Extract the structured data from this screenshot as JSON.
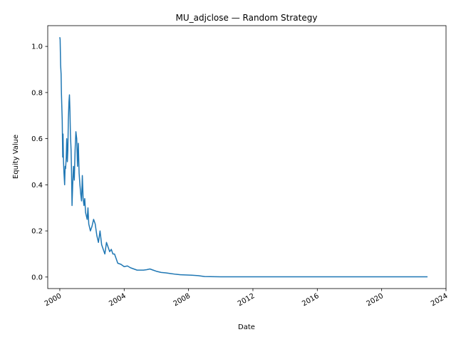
{
  "chart_data": {
    "type": "line",
    "title": "MU_adjclose — Random Strategy",
    "xlabel": "Date",
    "ylabel": "Equity Value",
    "x_ticks": [
      "2000",
      "2004",
      "2008",
      "2012",
      "2016",
      "2020",
      "2024"
    ],
    "y_ticks": [
      "0.0",
      "0.2",
      "0.4",
      "0.6",
      "0.8",
      "1.0"
    ],
    "xlim": [
      1999.25,
      2024.0
    ],
    "ylim": [
      -0.05,
      1.09
    ],
    "grid": false,
    "legend": "none",
    "series": [
      {
        "color": "#1f77b4",
        "x": [
          2000.0,
          2000.02,
          2000.05,
          2000.08,
          2000.1,
          2000.12,
          2000.15,
          2000.18,
          2000.2,
          2000.23,
          2000.26,
          2000.3,
          2000.33,
          2000.36,
          2000.4,
          2000.43,
          2000.47,
          2000.5,
          2000.53,
          2000.57,
          2000.6,
          2000.63,
          2000.66,
          2000.7,
          2000.73,
          2000.76,
          2000.8,
          2000.85,
          2000.9,
          2000.95,
          2001.0,
          2001.05,
          2001.1,
          2001.15,
          2001.2,
          2001.25,
          2001.3,
          2001.35,
          2001.4,
          2001.45,
          2001.5,
          2001.55,
          2001.6,
          2001.7,
          2001.75,
          2001.8,
          2001.9,
          2002.0,
          2002.1,
          2002.2,
          2002.3,
          2002.4,
          2002.5,
          2002.6,
          2002.7,
          2002.8,
          2002.9,
          2003.0,
          2003.1,
          2003.2,
          2003.3,
          2003.4,
          2003.5,
          2003.6,
          2003.8,
          2004.0,
          2004.2,
          2004.4,
          2004.6,
          2004.8,
          2005.0,
          2005.2,
          2005.4,
          2005.6,
          2005.8,
          2006.0,
          2006.3,
          2006.6,
          2006.9,
          2007.2,
          2007.5,
          2007.8,
          2008.2,
          2008.6,
          2009.0,
          2010.0,
          2012.0,
          2014.0,
          2016.0,
          2018.0,
          2020.0,
          2022.0,
          2022.85
        ],
        "y": [
          1.04,
          1.03,
          0.92,
          0.88,
          0.8,
          0.75,
          0.68,
          0.52,
          0.62,
          0.5,
          0.45,
          0.4,
          0.48,
          0.47,
          0.52,
          0.6,
          0.5,
          0.55,
          0.68,
          0.76,
          0.79,
          0.72,
          0.62,
          0.55,
          0.45,
          0.31,
          0.4,
          0.48,
          0.42,
          0.55,
          0.63,
          0.6,
          0.48,
          0.58,
          0.45,
          0.4,
          0.36,
          0.33,
          0.44,
          0.34,
          0.31,
          0.34,
          0.28,
          0.25,
          0.3,
          0.23,
          0.2,
          0.22,
          0.25,
          0.23,
          0.18,
          0.15,
          0.2,
          0.14,
          0.12,
          0.1,
          0.15,
          0.13,
          0.11,
          0.12,
          0.1,
          0.1,
          0.08,
          0.06,
          0.055,
          0.045,
          0.048,
          0.04,
          0.035,
          0.03,
          0.03,
          0.03,
          0.032,
          0.035,
          0.03,
          0.025,
          0.02,
          0.018,
          0.015,
          0.012,
          0.01,
          0.009,
          0.008,
          0.006,
          0.002,
          0.001,
          0.001,
          0.001,
          0.001,
          0.001,
          0.001,
          0.001,
          0.001
        ]
      }
    ]
  }
}
